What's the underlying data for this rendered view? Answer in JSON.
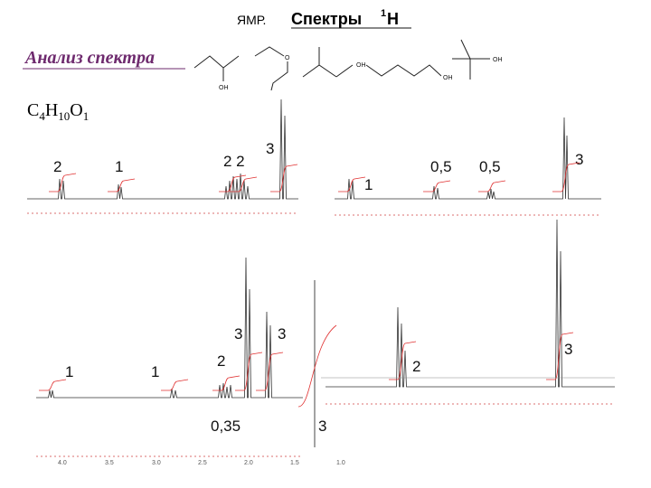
{
  "header": {
    "prefix": "ЯМР.",
    "title": "Спектры",
    "sup": "1",
    "nucleus": "H"
  },
  "subtitle": "Анализ спектра",
  "formula": [
    {
      "element": "C",
      "count": "4"
    },
    {
      "element": "H",
      "count": "10"
    },
    {
      "element": "O",
      "count": "1"
    }
  ],
  "structures": [
    {
      "label": "OH"
    },
    {
      "label": "O"
    },
    {
      "label": "OH"
    },
    {
      "label": "OH"
    },
    {
      "label": "OH"
    }
  ],
  "spectra": [
    {
      "peak_labels": [
        "2",
        "1",
        "2 2",
        "3"
      ]
    },
    {
      "peak_labels": [
        "1",
        "0,5",
        "0,5",
        "3"
      ]
    },
    {
      "peak_labels": [
        "3",
        "3",
        "1",
        "1",
        "2",
        "0,35",
        "3"
      ],
      "axis_labels": [
        "4.0",
        "3.5",
        "3.0",
        "2.5",
        "2.0",
        "1.5",
        "1.0"
      ]
    },
    {
      "peak_labels": [
        "3",
        "2"
      ]
    }
  ]
}
